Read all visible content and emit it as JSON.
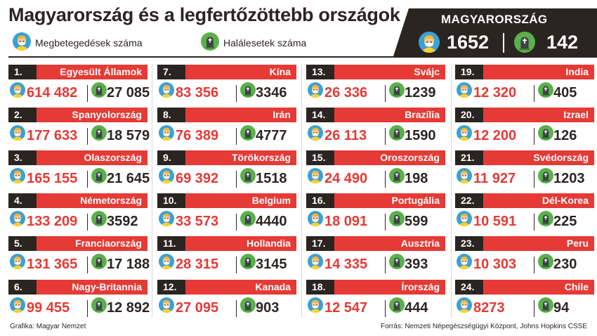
{
  "title": "Magyarország és a legfertőzöttebb országok",
  "legend": {
    "cases_label": "Megbetegedések száma",
    "deaths_label": "Halálesetek száma",
    "cases_icon": "person-face-icon",
    "deaths_icon": "tombstone-icon"
  },
  "hungary": {
    "label": "MAGYARORSZÁG",
    "cases": "1652",
    "deaths": "142"
  },
  "countries": [
    {
      "rank": "1.",
      "name": "Egyesült Államok",
      "cases": "614 482",
      "deaths": "27 085"
    },
    {
      "rank": "2.",
      "name": "Spanyolország",
      "cases": "177 633",
      "deaths": "18 579"
    },
    {
      "rank": "3.",
      "name": "Olaszország",
      "cases": "165 155",
      "deaths": "21 645"
    },
    {
      "rank": "4.",
      "name": "Németország",
      "cases": "133 209",
      "deaths": "3592"
    },
    {
      "rank": "5.",
      "name": "Franciaország",
      "cases": "131 365",
      "deaths": "17 188"
    },
    {
      "rank": "6.",
      "name": "Nagy-Britannia",
      "cases": "99 455",
      "deaths": "12 892"
    },
    {
      "rank": "7.",
      "name": "Kína",
      "cases": "83 356",
      "deaths": "3346"
    },
    {
      "rank": "8.",
      "name": "Irán",
      "cases": "76 389",
      "deaths": "4777"
    },
    {
      "rank": "9.",
      "name": "Törökország",
      "cases": "69 392",
      "deaths": "1518"
    },
    {
      "rank": "10.",
      "name": "Belgium",
      "cases": "33 573",
      "deaths": "4440"
    },
    {
      "rank": "11.",
      "name": "Hollandia",
      "cases": "28 315",
      "deaths": "3145"
    },
    {
      "rank": "12.",
      "name": "Kanada",
      "cases": "27 095",
      "deaths": "903"
    },
    {
      "rank": "13.",
      "name": "Svájc",
      "cases": "26 336",
      "deaths": "1239"
    },
    {
      "rank": "14.",
      "name": "Brazília",
      "cases": "26 113",
      "deaths": "1590"
    },
    {
      "rank": "15.",
      "name": "Oroszország",
      "cases": "24 490",
      "deaths": "198"
    },
    {
      "rank": "16.",
      "name": "Portugália",
      "cases": "18 091",
      "deaths": "599"
    },
    {
      "rank": "17.",
      "name": "Ausztria",
      "cases": "14 335",
      "deaths": "393"
    },
    {
      "rank": "18.",
      "name": "Írország",
      "cases": "12 547",
      "deaths": "444"
    },
    {
      "rank": "19.",
      "name": "India",
      "cases": "12 320",
      "deaths": "405"
    },
    {
      "rank": "20.",
      "name": "Izrael",
      "cases": "12 200",
      "deaths": "126"
    },
    {
      "rank": "21.",
      "name": "Svédország",
      "cases": "11 927",
      "deaths": "1203"
    },
    {
      "rank": "22.",
      "name": "Dél-Korea",
      "cases": "10 591",
      "deaths": "225"
    },
    {
      "rank": "23.",
      "name": "Peru",
      "cases": "10 303",
      "deaths": "230"
    },
    {
      "rank": "24.",
      "name": "Chile",
      "cases": "8273",
      "deaths": "94"
    }
  ],
  "footer": {
    "credit": "Grafika: Magyar Nemzet",
    "source": "Forrás: Nemzeti Népegészségügyi Központ, Johns Hopkins CSSE"
  },
  "colors": {
    "accent_red": "#e53a35",
    "dark": "#2b2522",
    "face_bg": "#3aa0d8",
    "face_skin": "#f7c89b",
    "hair": "#f2b92c",
    "shirt": "#f6d232",
    "grave_bg": "#5ab04a",
    "grave_stone": "#3d4248"
  }
}
